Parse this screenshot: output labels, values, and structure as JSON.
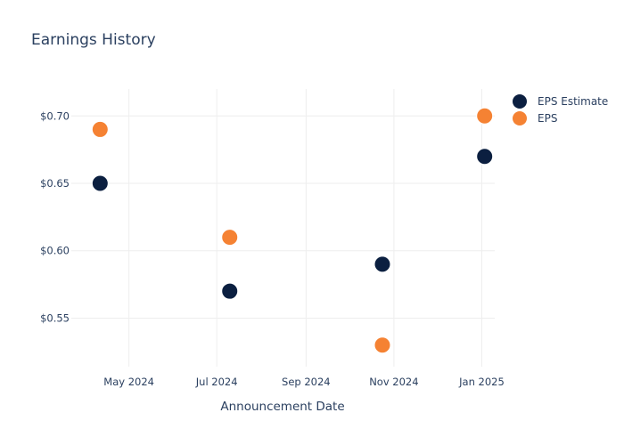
{
  "chart_data": {
    "type": "scatter",
    "title": "Earnings History",
    "xlabel": "Announcement Date",
    "ylabel": "",
    "x_ticks": [
      "May 2024",
      "Jul 2024",
      "Sep 2024",
      "Nov 2024",
      "Jan 2025"
    ],
    "y_ticks": [
      "$0.55",
      "$0.60",
      "$0.65",
      "$0.70"
    ],
    "y_tick_values": [
      0.55,
      0.6,
      0.65,
      0.7
    ],
    "x_tick_dates": [
      "2024-05-01",
      "2024-07-01",
      "2024-09-01",
      "2024-11-01",
      "2025-01-01"
    ],
    "xlim": [
      "2024-03-22",
      "2025-01-10"
    ],
    "ylim": [
      0.514,
      0.72
    ],
    "grid": true,
    "legend_position": "top-right",
    "series": [
      {
        "name": "EPS Estimate",
        "color": "#0b1f40",
        "x": [
          "2024-04-11",
          "2024-07-10",
          "2024-10-24",
          "2025-01-03"
        ],
        "y": [
          0.65,
          0.57,
          0.59,
          0.67
        ]
      },
      {
        "name": "EPS",
        "color": "#f58233",
        "x": [
          "2024-04-11",
          "2024-07-10",
          "2024-10-24",
          "2025-01-03"
        ],
        "y": [
          0.69,
          0.61,
          0.53,
          0.7
        ]
      }
    ]
  }
}
